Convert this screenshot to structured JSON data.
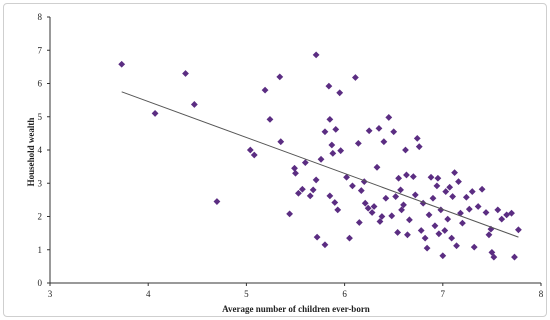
{
  "chart_data": {
    "type": "scatter",
    "xlabel": "Average number of  children ever-born",
    "ylabel": "Household wealth",
    "xlim": [
      3,
      8
    ],
    "ylim": [
      0,
      8
    ],
    "xticks": [
      "3",
      "4",
      "5",
      "6",
      "7",
      "8"
    ],
    "yticks": [
      "0",
      "1",
      "2",
      "3",
      "4",
      "5",
      "6",
      "7",
      "8"
    ],
    "grid": false,
    "legend": "none",
    "marker_color": "#5b2d82",
    "line_color": "#555555",
    "trendline": {
      "x": [
        3.73,
        7.77
      ],
      "y": [
        5.75,
        1.38
      ]
    },
    "points": [
      {
        "x": 3.73,
        "y": 6.58
      },
      {
        "x": 4.07,
        "y": 5.1
      },
      {
        "x": 4.38,
        "y": 6.3
      },
      {
        "x": 4.47,
        "y": 5.37
      },
      {
        "x": 4.7,
        "y": 2.45
      },
      {
        "x": 5.04,
        "y": 4.0
      },
      {
        "x": 5.08,
        "y": 3.85
      },
      {
        "x": 5.19,
        "y": 5.8
      },
      {
        "x": 5.24,
        "y": 4.92
      },
      {
        "x": 5.34,
        "y": 6.2
      },
      {
        "x": 5.35,
        "y": 4.25
      },
      {
        "x": 5.44,
        "y": 2.08
      },
      {
        "x": 5.49,
        "y": 3.45
      },
      {
        "x": 5.5,
        "y": 3.3
      },
      {
        "x": 5.53,
        "y": 2.7
      },
      {
        "x": 5.57,
        "y": 2.82
      },
      {
        "x": 5.6,
        "y": 3.62
      },
      {
        "x": 5.65,
        "y": 2.62
      },
      {
        "x": 5.68,
        "y": 2.8
      },
      {
        "x": 5.71,
        "y": 6.86
      },
      {
        "x": 5.71,
        "y": 3.1
      },
      {
        "x": 5.72,
        "y": 1.38
      },
      {
        "x": 5.76,
        "y": 3.72
      },
      {
        "x": 5.8,
        "y": 4.55
      },
      {
        "x": 5.8,
        "y": 1.15
      },
      {
        "x": 5.84,
        "y": 5.92
      },
      {
        "x": 5.85,
        "y": 4.92
      },
      {
        "x": 5.85,
        "y": 2.62
      },
      {
        "x": 5.87,
        "y": 4.15
      },
      {
        "x": 5.88,
        "y": 3.9
      },
      {
        "x": 5.9,
        "y": 2.42
      },
      {
        "x": 5.91,
        "y": 4.62
      },
      {
        "x": 5.93,
        "y": 2.2
      },
      {
        "x": 5.95,
        "y": 5.72
      },
      {
        "x": 5.96,
        "y": 3.98
      },
      {
        "x": 6.02,
        "y": 3.18
      },
      {
        "x": 6.05,
        "y": 1.35
      },
      {
        "x": 6.08,
        "y": 2.92
      },
      {
        "x": 6.11,
        "y": 6.18
      },
      {
        "x": 6.14,
        "y": 4.2
      },
      {
        "x": 6.15,
        "y": 1.82
      },
      {
        "x": 6.17,
        "y": 2.78
      },
      {
        "x": 6.2,
        "y": 3.05
      },
      {
        "x": 6.21,
        "y": 2.4
      },
      {
        "x": 6.24,
        "y": 2.25
      },
      {
        "x": 6.25,
        "y": 4.58
      },
      {
        "x": 6.28,
        "y": 2.12
      },
      {
        "x": 6.3,
        "y": 2.3
      },
      {
        "x": 6.33,
        "y": 3.48
      },
      {
        "x": 6.35,
        "y": 4.65
      },
      {
        "x": 6.36,
        "y": 1.85
      },
      {
        "x": 6.38,
        "y": 2.0
      },
      {
        "x": 6.4,
        "y": 4.25
      },
      {
        "x": 6.42,
        "y": 2.55
      },
      {
        "x": 6.45,
        "y": 4.98
      },
      {
        "x": 6.48,
        "y": 2.02
      },
      {
        "x": 6.5,
        "y": 4.55
      },
      {
        "x": 6.52,
        "y": 2.6
      },
      {
        "x": 6.54,
        "y": 1.52
      },
      {
        "x": 6.55,
        "y": 3.15
      },
      {
        "x": 6.57,
        "y": 2.8
      },
      {
        "x": 6.58,
        "y": 2.2
      },
      {
        "x": 6.6,
        "y": 2.35
      },
      {
        "x": 6.62,
        "y": 4.0
      },
      {
        "x": 6.63,
        "y": 3.25
      },
      {
        "x": 6.64,
        "y": 1.45
      },
      {
        "x": 6.66,
        "y": 1.9
      },
      {
        "x": 6.7,
        "y": 3.2
      },
      {
        "x": 6.72,
        "y": 2.65
      },
      {
        "x": 6.74,
        "y": 4.35
      },
      {
        "x": 6.76,
        "y": 4.1
      },
      {
        "x": 6.78,
        "y": 1.58
      },
      {
        "x": 6.8,
        "y": 2.4
      },
      {
        "x": 6.82,
        "y": 1.35
      },
      {
        "x": 6.84,
        "y": 1.05
      },
      {
        "x": 6.86,
        "y": 2.05
      },
      {
        "x": 6.88,
        "y": 3.18
      },
      {
        "x": 6.9,
        "y": 2.55
      },
      {
        "x": 6.92,
        "y": 1.72
      },
      {
        "x": 6.94,
        "y": 2.92
      },
      {
        "x": 6.95,
        "y": 3.15
      },
      {
        "x": 6.96,
        "y": 1.48
      },
      {
        "x": 6.98,
        "y": 2.2
      },
      {
        "x": 7.0,
        "y": 0.82
      },
      {
        "x": 7.02,
        "y": 1.58
      },
      {
        "x": 7.03,
        "y": 2.75
      },
      {
        "x": 7.05,
        "y": 1.92
      },
      {
        "x": 7.07,
        "y": 2.88
      },
      {
        "x": 7.09,
        "y": 1.35
      },
      {
        "x": 7.1,
        "y": 2.6
      },
      {
        "x": 7.12,
        "y": 3.32
      },
      {
        "x": 7.14,
        "y": 1.12
      },
      {
        "x": 7.16,
        "y": 3.05
      },
      {
        "x": 7.18,
        "y": 2.1
      },
      {
        "x": 7.2,
        "y": 1.8
      },
      {
        "x": 7.24,
        "y": 2.58
      },
      {
        "x": 7.27,
        "y": 2.22
      },
      {
        "x": 7.3,
        "y": 2.75
      },
      {
        "x": 7.32,
        "y": 1.08
      },
      {
        "x": 7.36,
        "y": 2.3
      },
      {
        "x": 7.4,
        "y": 2.82
      },
      {
        "x": 7.44,
        "y": 2.12
      },
      {
        "x": 7.47,
        "y": 1.45
      },
      {
        "x": 7.49,
        "y": 1.62
      },
      {
        "x": 7.5,
        "y": 0.92
      },
      {
        "x": 7.52,
        "y": 0.78
      },
      {
        "x": 7.56,
        "y": 2.2
      },
      {
        "x": 7.6,
        "y": 1.92
      },
      {
        "x": 7.65,
        "y": 2.05
      },
      {
        "x": 7.7,
        "y": 2.1
      },
      {
        "x": 7.73,
        "y": 0.78
      },
      {
        "x": 7.77,
        "y": 1.6
      }
    ]
  }
}
